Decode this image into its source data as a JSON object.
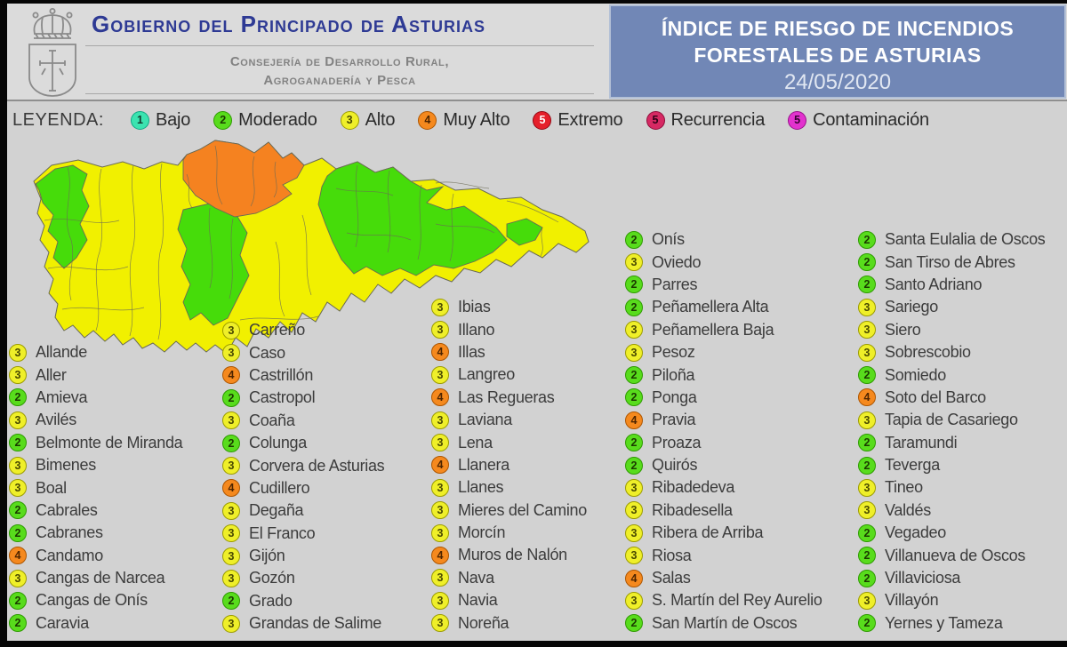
{
  "header": {
    "gobierno_title": "Gobierno del Principado de Asturias",
    "consejeria_line1": "Consejería de Desarrollo Rural,",
    "consejeria_line2": "Agroganadería y Pesca",
    "report_title_line1": "ÍNDICE DE RIESGO DE INCENDIOS",
    "report_title_line2": "FORESTALES DE ASTURIAS",
    "report_date": "24/05/2020",
    "colors": {
      "panel_blue": "#7187B6",
      "panel_border": "#B3C0D6",
      "gobierno_text": "#2E3A94",
      "consejeria_text": "#828282"
    }
  },
  "legend": {
    "label": "LEYENDA:",
    "items": [
      {
        "id": "bajo",
        "num": "1",
        "label": "Bajo",
        "fill": "#3BE3B0",
        "border": "#0FA884",
        "num_color": "#143a2e"
      },
      {
        "id": "moderado",
        "num": "2",
        "label": "Moderado",
        "fill": "#58DC1C",
        "border": "#2E9B00",
        "num_color": "#1b3a00"
      },
      {
        "id": "alto",
        "num": "3",
        "label": "Alto",
        "fill": "#EFEF29",
        "border": "#9C9C00",
        "num_color": "#4a4a00"
      },
      {
        "id": "muy-alto",
        "num": "4",
        "label": "Muy Alto",
        "fill": "#F5891E",
        "border": "#AE5600",
        "num_color": "#4d2400"
      },
      {
        "id": "extremo",
        "num": "5",
        "label": "Extremo",
        "fill": "#E5202B",
        "border": "#930713",
        "num_color": "#FFFFFF"
      },
      {
        "id": "recurrencia",
        "num": "5",
        "label": "Recurrencia",
        "fill": "#D62963",
        "border": "#8E0E3B",
        "num_color": "#2b0015"
      },
      {
        "id": "contaminacion",
        "num": "5",
        "label": "Contaminación",
        "fill": "#E232CE",
        "border": "#98138A",
        "num_color": "#33002e"
      }
    ]
  },
  "map": {
    "colors": {
      "yellow": "#F1F000",
      "green": "#46DC0A",
      "orange": "#F58220",
      "border": "#6A6A55"
    }
  },
  "municipality_columns": [
    [
      {
        "level": 3,
        "name": "Allande"
      },
      {
        "level": 3,
        "name": "Aller"
      },
      {
        "level": 2,
        "name": "Amieva"
      },
      {
        "level": 3,
        "name": "Avilés"
      },
      {
        "level": 2,
        "name": "Belmonte de Miranda"
      },
      {
        "level": 3,
        "name": "Bimenes"
      },
      {
        "level": 3,
        "name": "Boal"
      },
      {
        "level": 2,
        "name": "Cabrales"
      },
      {
        "level": 2,
        "name": "Cabranes"
      },
      {
        "level": 4,
        "name": "Candamo"
      },
      {
        "level": 3,
        "name": "Cangas de Narcea"
      },
      {
        "level": 2,
        "name": "Cangas de Onís"
      },
      {
        "level": 2,
        "name": "Caravia"
      }
    ],
    [
      {
        "level": 3,
        "name": "Carreño"
      },
      {
        "level": 3,
        "name": "Caso"
      },
      {
        "level": 4,
        "name": "Castrillón"
      },
      {
        "level": 2,
        "name": "Castropol"
      },
      {
        "level": 3,
        "name": "Coaña"
      },
      {
        "level": 2,
        "name": "Colunga"
      },
      {
        "level": 3,
        "name": "Corvera de Asturias"
      },
      {
        "level": 4,
        "name": "Cudillero"
      },
      {
        "level": 3,
        "name": "Degaña"
      },
      {
        "level": 3,
        "name": "El Franco"
      },
      {
        "level": 3,
        "name": "Gijón"
      },
      {
        "level": 3,
        "name": "Gozón"
      },
      {
        "level": 2,
        "name": "Grado"
      },
      {
        "level": 3,
        "name": "Grandas de Salime"
      }
    ],
    [
      {
        "level": 3,
        "name": "Ibias"
      },
      {
        "level": 3,
        "name": "Illano"
      },
      {
        "level": 4,
        "name": "Illas"
      },
      {
        "level": 3,
        "name": "Langreo"
      },
      {
        "level": 4,
        "name": "Las Regueras"
      },
      {
        "level": 3,
        "name": "Laviana"
      },
      {
        "level": 3,
        "name": "Lena"
      },
      {
        "level": 4,
        "name": "Llanera"
      },
      {
        "level": 3,
        "name": "Llanes"
      },
      {
        "level": 3,
        "name": "Mieres del Camino"
      },
      {
        "level": 3,
        "name": "Morcín"
      },
      {
        "level": 4,
        "name": "Muros de Nalón"
      },
      {
        "level": 3,
        "name": "Nava"
      },
      {
        "level": 3,
        "name": "Navia"
      },
      {
        "level": 3,
        "name": "Noreña"
      }
    ],
    [
      {
        "level": 2,
        "name": "Onís"
      },
      {
        "level": 3,
        "name": "Oviedo"
      },
      {
        "level": 2,
        "name": "Parres"
      },
      {
        "level": 2,
        "name": "Peñamellera Alta"
      },
      {
        "level": 3,
        "name": "Peñamellera Baja"
      },
      {
        "level": 3,
        "name": "Pesoz"
      },
      {
        "level": 2,
        "name": "Piloña"
      },
      {
        "level": 2,
        "name": "Ponga"
      },
      {
        "level": 4,
        "name": "Pravia"
      },
      {
        "level": 2,
        "name": "Proaza"
      },
      {
        "level": 2,
        "name": "Quirós"
      },
      {
        "level": 3,
        "name": "Ribadedeva"
      },
      {
        "level": 3,
        "name": "Ribadesella"
      },
      {
        "level": 3,
        "name": "Ribera de Arriba"
      },
      {
        "level": 3,
        "name": "Riosa"
      },
      {
        "level": 4,
        "name": "Salas"
      },
      {
        "level": 3,
        "name": "S. Martín del Rey Aurelio"
      },
      {
        "level": 2,
        "name": "San Martín de Oscos"
      }
    ],
    [
      {
        "level": 2,
        "name": "Santa Eulalia de Oscos"
      },
      {
        "level": 2,
        "name": "San Tirso de Abres"
      },
      {
        "level": 2,
        "name": "Santo Adriano"
      },
      {
        "level": 3,
        "name": "Sariego"
      },
      {
        "level": 3,
        "name": "Siero"
      },
      {
        "level": 3,
        "name": "Sobrescobio"
      },
      {
        "level": 2,
        "name": "Somiedo"
      },
      {
        "level": 4,
        "name": "Soto del Barco"
      },
      {
        "level": 3,
        "name": "Tapia de Casariego"
      },
      {
        "level": 2,
        "name": "Taramundi"
      },
      {
        "level": 2,
        "name": "Teverga"
      },
      {
        "level": 3,
        "name": "Tineo"
      },
      {
        "level": 3,
        "name": "Valdés"
      },
      {
        "level": 2,
        "name": "Vegadeo"
      },
      {
        "level": 2,
        "name": "Villanueva de Oscos"
      },
      {
        "level": 2,
        "name": "Villaviciosa"
      },
      {
        "level": 3,
        "name": "Villayón"
      },
      {
        "level": 2,
        "name": "Yernes y Tameza"
      }
    ]
  ]
}
